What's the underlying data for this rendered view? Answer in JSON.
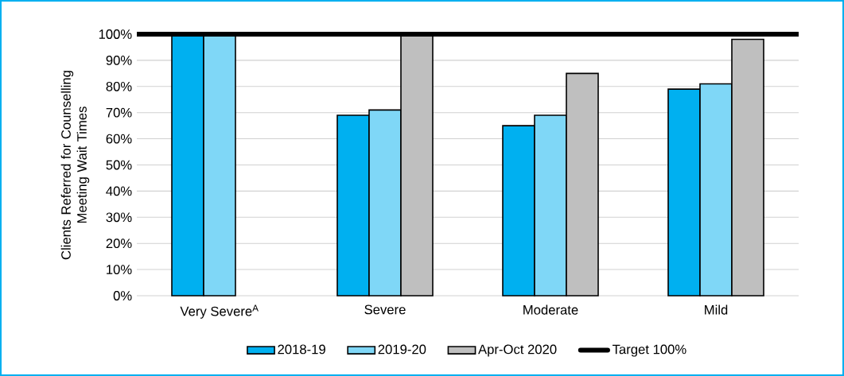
{
  "chart_data": {
    "type": "bar",
    "ylabel": "Clients Referred for Counselling Meeting Wait Times",
    "categories": [
      "Very Severe$^{A}$",
      "Severe",
      "Moderate",
      "Mild"
    ],
    "series": [
      {
        "name": "2018-19",
        "color": "#00b0f0",
        "values": [
          100,
          69,
          65,
          79
        ]
      },
      {
        "name": "2019-20",
        "color": "#7fd7f7",
        "values": [
          100,
          71,
          69,
          81
        ]
      },
      {
        "name": "Apr-Oct 2020",
        "color": "#bfbfbf",
        "values": [
          null,
          100,
          85,
          98
        ]
      }
    ],
    "ylim": [
      0,
      100
    ],
    "yticks": [
      {
        "value": 0,
        "label": "0%"
      },
      {
        "value": 10,
        "label": "10%"
      },
      {
        "value": 20,
        "label": "20%"
      },
      {
        "value": 30,
        "label": "30%"
      },
      {
        "value": 40,
        "label": "40%"
      },
      {
        "value": 50,
        "label": "50%"
      },
      {
        "value": 60,
        "label": "60%"
      },
      {
        "value": 70,
        "label": "70%"
      },
      {
        "value": 80,
        "label": "80%"
      },
      {
        "value": 90,
        "label": "90%"
      },
      {
        "value": 100,
        "label": "100%"
      }
    ],
    "ref_lines": [
      {
        "axis": "y",
        "value": 100,
        "label": "Target 100%",
        "color": "#000000"
      }
    ],
    "grid": "y",
    "legend": "bottom"
  }
}
